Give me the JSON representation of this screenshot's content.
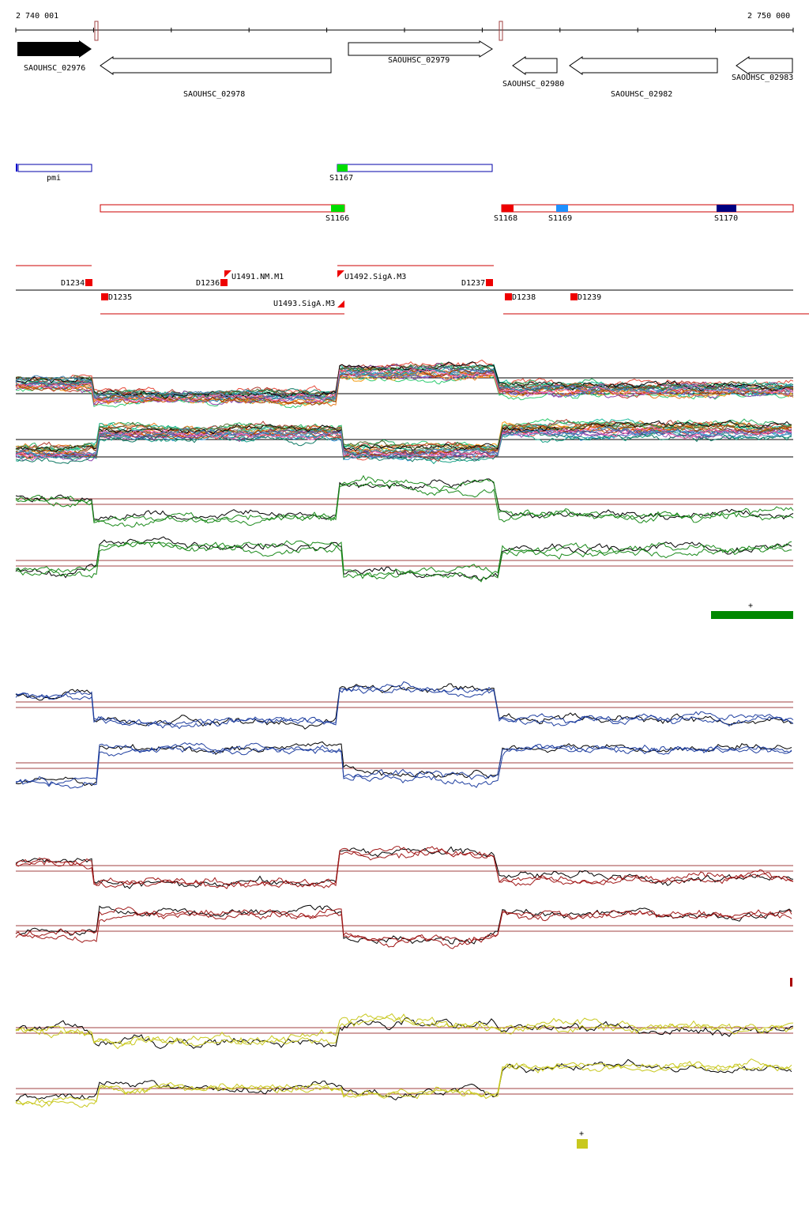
{
  "ruler": {
    "start_label": "2 740 001",
    "end_label": "2 750 000",
    "start": 2740001,
    "end": 2750000
  },
  "colors": {
    "gene_fill": "#000000",
    "gene_outline": "#000000",
    "blue_feature": "#0000cc",
    "red_feature": "#cc0000",
    "green_trace": "#1a8a1a",
    "blue_trace": "#1f3fa0",
    "red_trace": "#a01818",
    "yellow_trace": "#c8c81e"
  },
  "genes": [
    {
      "name": "SAOUHSC_02976",
      "strand": "+",
      "filled": true
    },
    {
      "name": "SAOUHSC_02978",
      "strand": "-",
      "filled": false
    },
    {
      "name": "SAOUHSC_02979",
      "strand": "+",
      "filled": false
    },
    {
      "name": "SAOUHSC_02980",
      "strand": "-",
      "filled": false
    },
    {
      "name": "SAOUHSC_02982",
      "strand": "-",
      "filled": false
    },
    {
      "name": "SAOUHSC_02983",
      "strand": "-",
      "filled": false
    }
  ],
  "segments_blue": [
    {
      "name": "pmi"
    },
    {
      "name": "S1167",
      "marker_color": "#00dd00"
    }
  ],
  "segments_red": [
    {
      "name": "S1166",
      "marker_color": "#00dd00"
    },
    {
      "name": "S1168",
      "marker_color": "#ee0000"
    },
    {
      "name": "S1169",
      "marker_color": "#1e90ff"
    },
    {
      "name": "S1170",
      "marker_color": "#000080"
    }
  ],
  "features": [
    {
      "name": "D1234"
    },
    {
      "name": "D1235"
    },
    {
      "name": "D1236"
    },
    {
      "name": "U1491.NM.M1"
    },
    {
      "name": "U1492.SigA.M3"
    },
    {
      "name": "U1493.SigA.M3"
    },
    {
      "name": "D1237"
    },
    {
      "name": "D1238"
    },
    {
      "name": "D1239"
    }
  ],
  "legend_marks": {
    "plus": "+",
    "green_bar_color": "#008800",
    "red_tick_color": "#aa0000",
    "yellow_box_color": "#c8c81e"
  }
}
